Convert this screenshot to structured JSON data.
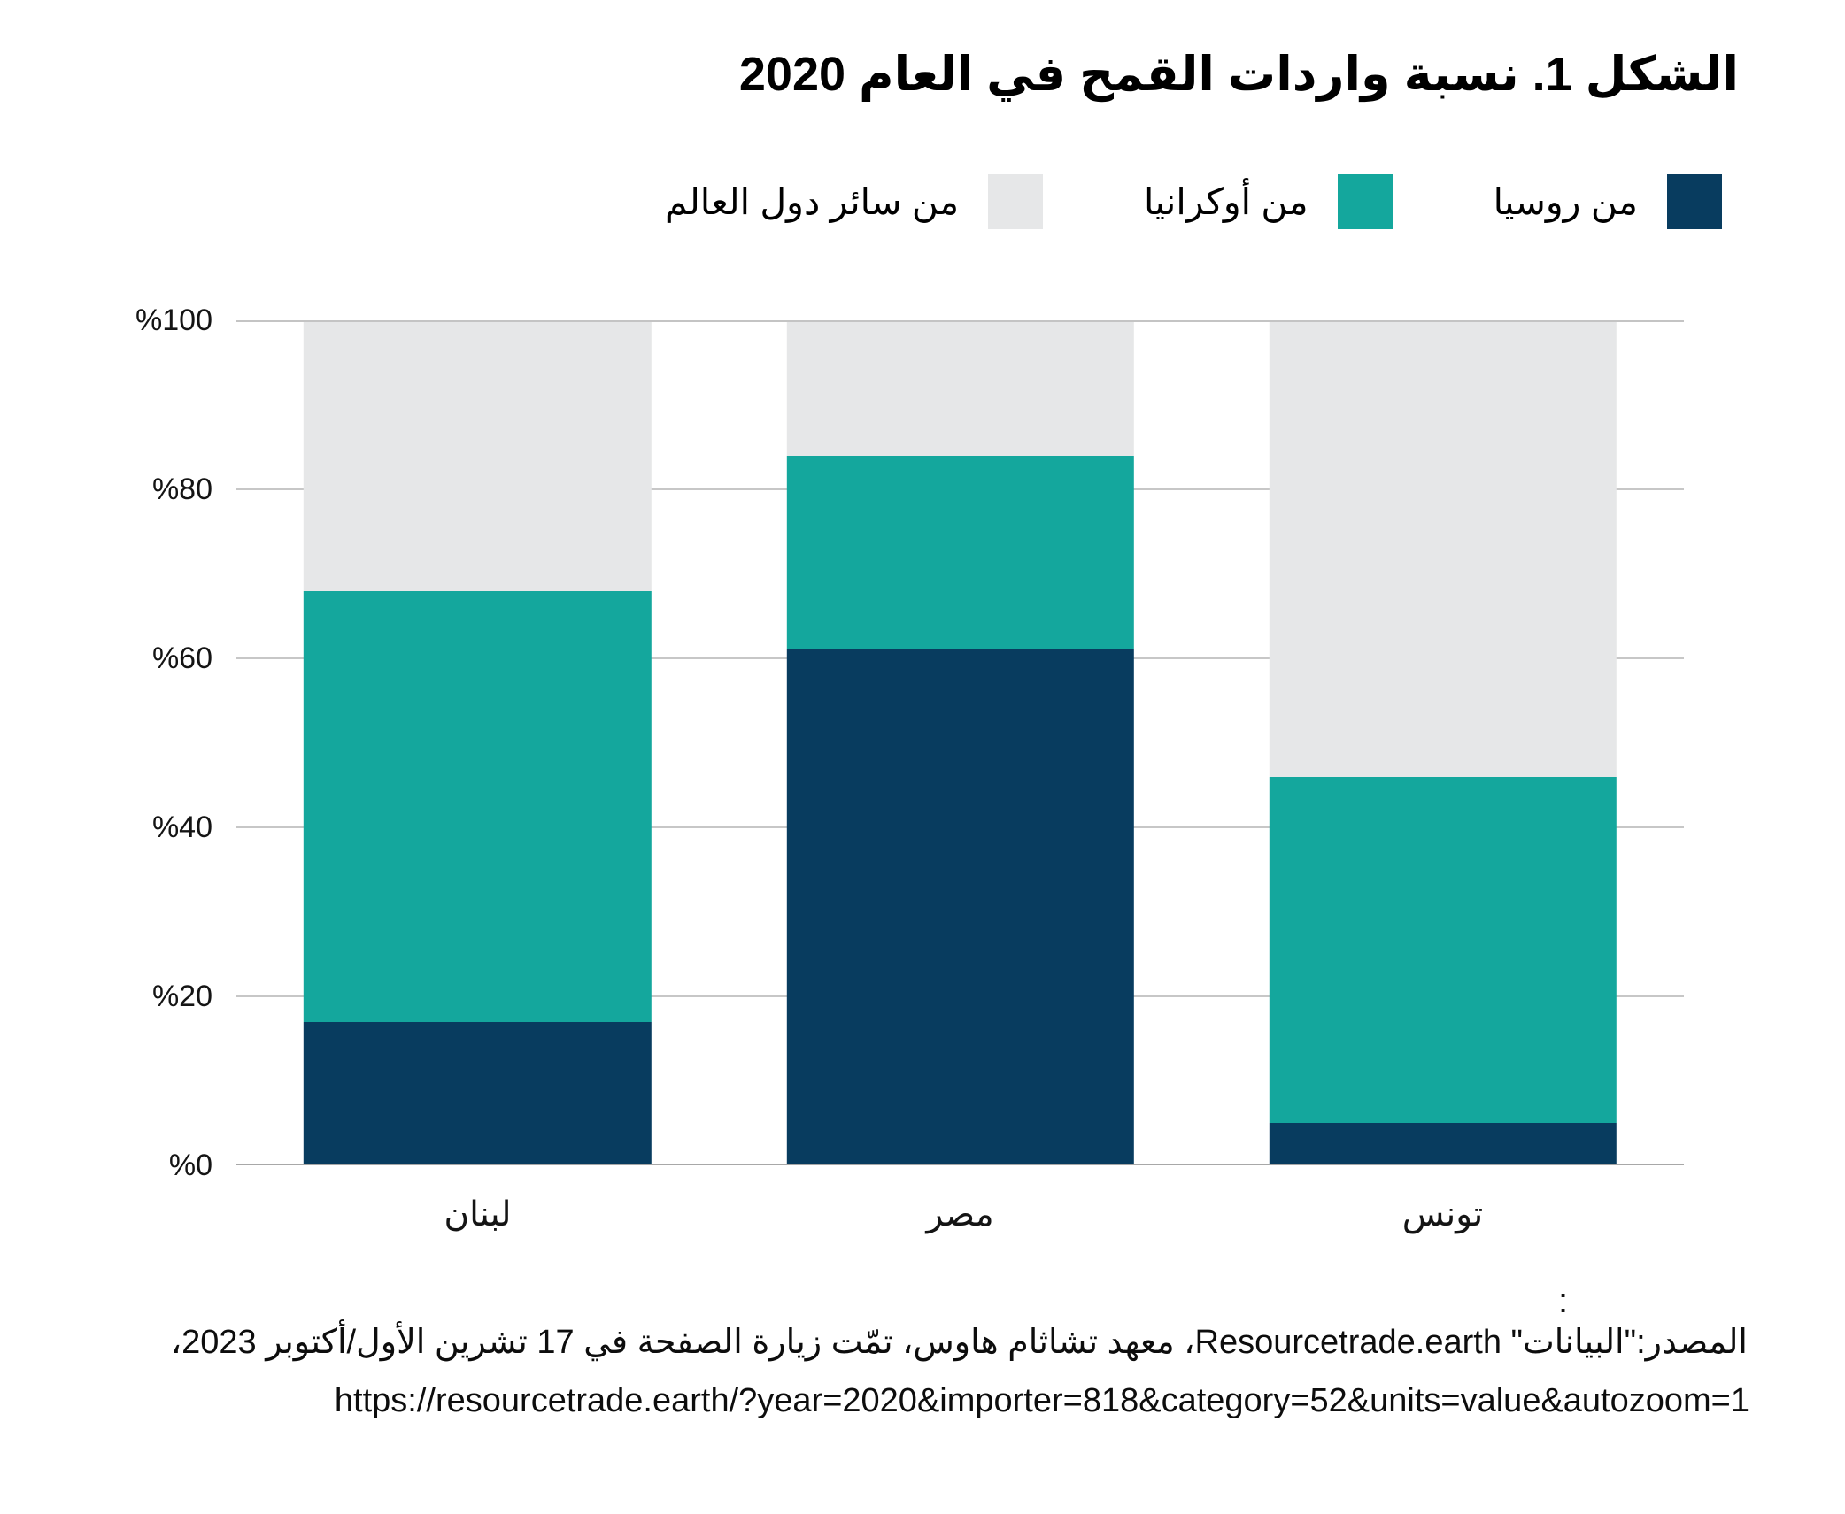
{
  "figure": {
    "title": "الشكل 1. نسبة واردات القمح في العام 2020"
  },
  "legend": [
    {
      "key": "russia",
      "label": "من روسيا",
      "color": "#083c5f"
    },
    {
      "key": "ukraine",
      "label": "من أوكرانيا",
      "color": "#14a79d"
    },
    {
      "key": "rest",
      "label": "من سائر دول العالم",
      "color": "#e6e7e8"
    }
  ],
  "chart_data": {
    "type": "bar",
    "stacked": true,
    "title": "الشكل 1. نسبة واردات القمح في العام 2020",
    "categories": [
      "لبنان",
      "مصر",
      "تونس"
    ],
    "series": [
      {
        "name": "من روسيا",
        "color": "#083c5f",
        "values": [
          17,
          61,
          5
        ]
      },
      {
        "name": "من أوكرانيا",
        "color": "#14a79d",
        "values": [
          51,
          23,
          41
        ]
      },
      {
        "name": "من سائر دول العالم",
        "color": "#e6e7e8",
        "values": [
          32,
          16,
          54
        ]
      }
    ],
    "xlabel": "",
    "ylabel": "",
    "ylim": [
      0,
      100
    ],
    "yticks": [
      "%0",
      "%20",
      "%40",
      "%60",
      "%80",
      "%100"
    ],
    "grid": true,
    "legend_position": "top-right",
    "bar_width_fraction": 0.24
  },
  "source": {
    "stray_colon": ":",
    "line1": "المصدر:\"البيانات\" Resourcetrade.earth، معهد تشاثام هاوس، تمّت زيارة الصفحة في 17 تشرين الأول/أكتوبر 2023،",
    "url": "https://resourcetrade.earth/?year=2020&importer=818&category=52&units=value&autozoom=1"
  },
  "colors": {
    "russia": "#083c5f",
    "ukraine": "#14a79d",
    "rest_of_world": "#e6e7e8",
    "gridline": "#c7c7c7",
    "text": "#111111",
    "background": "#ffffff"
  }
}
